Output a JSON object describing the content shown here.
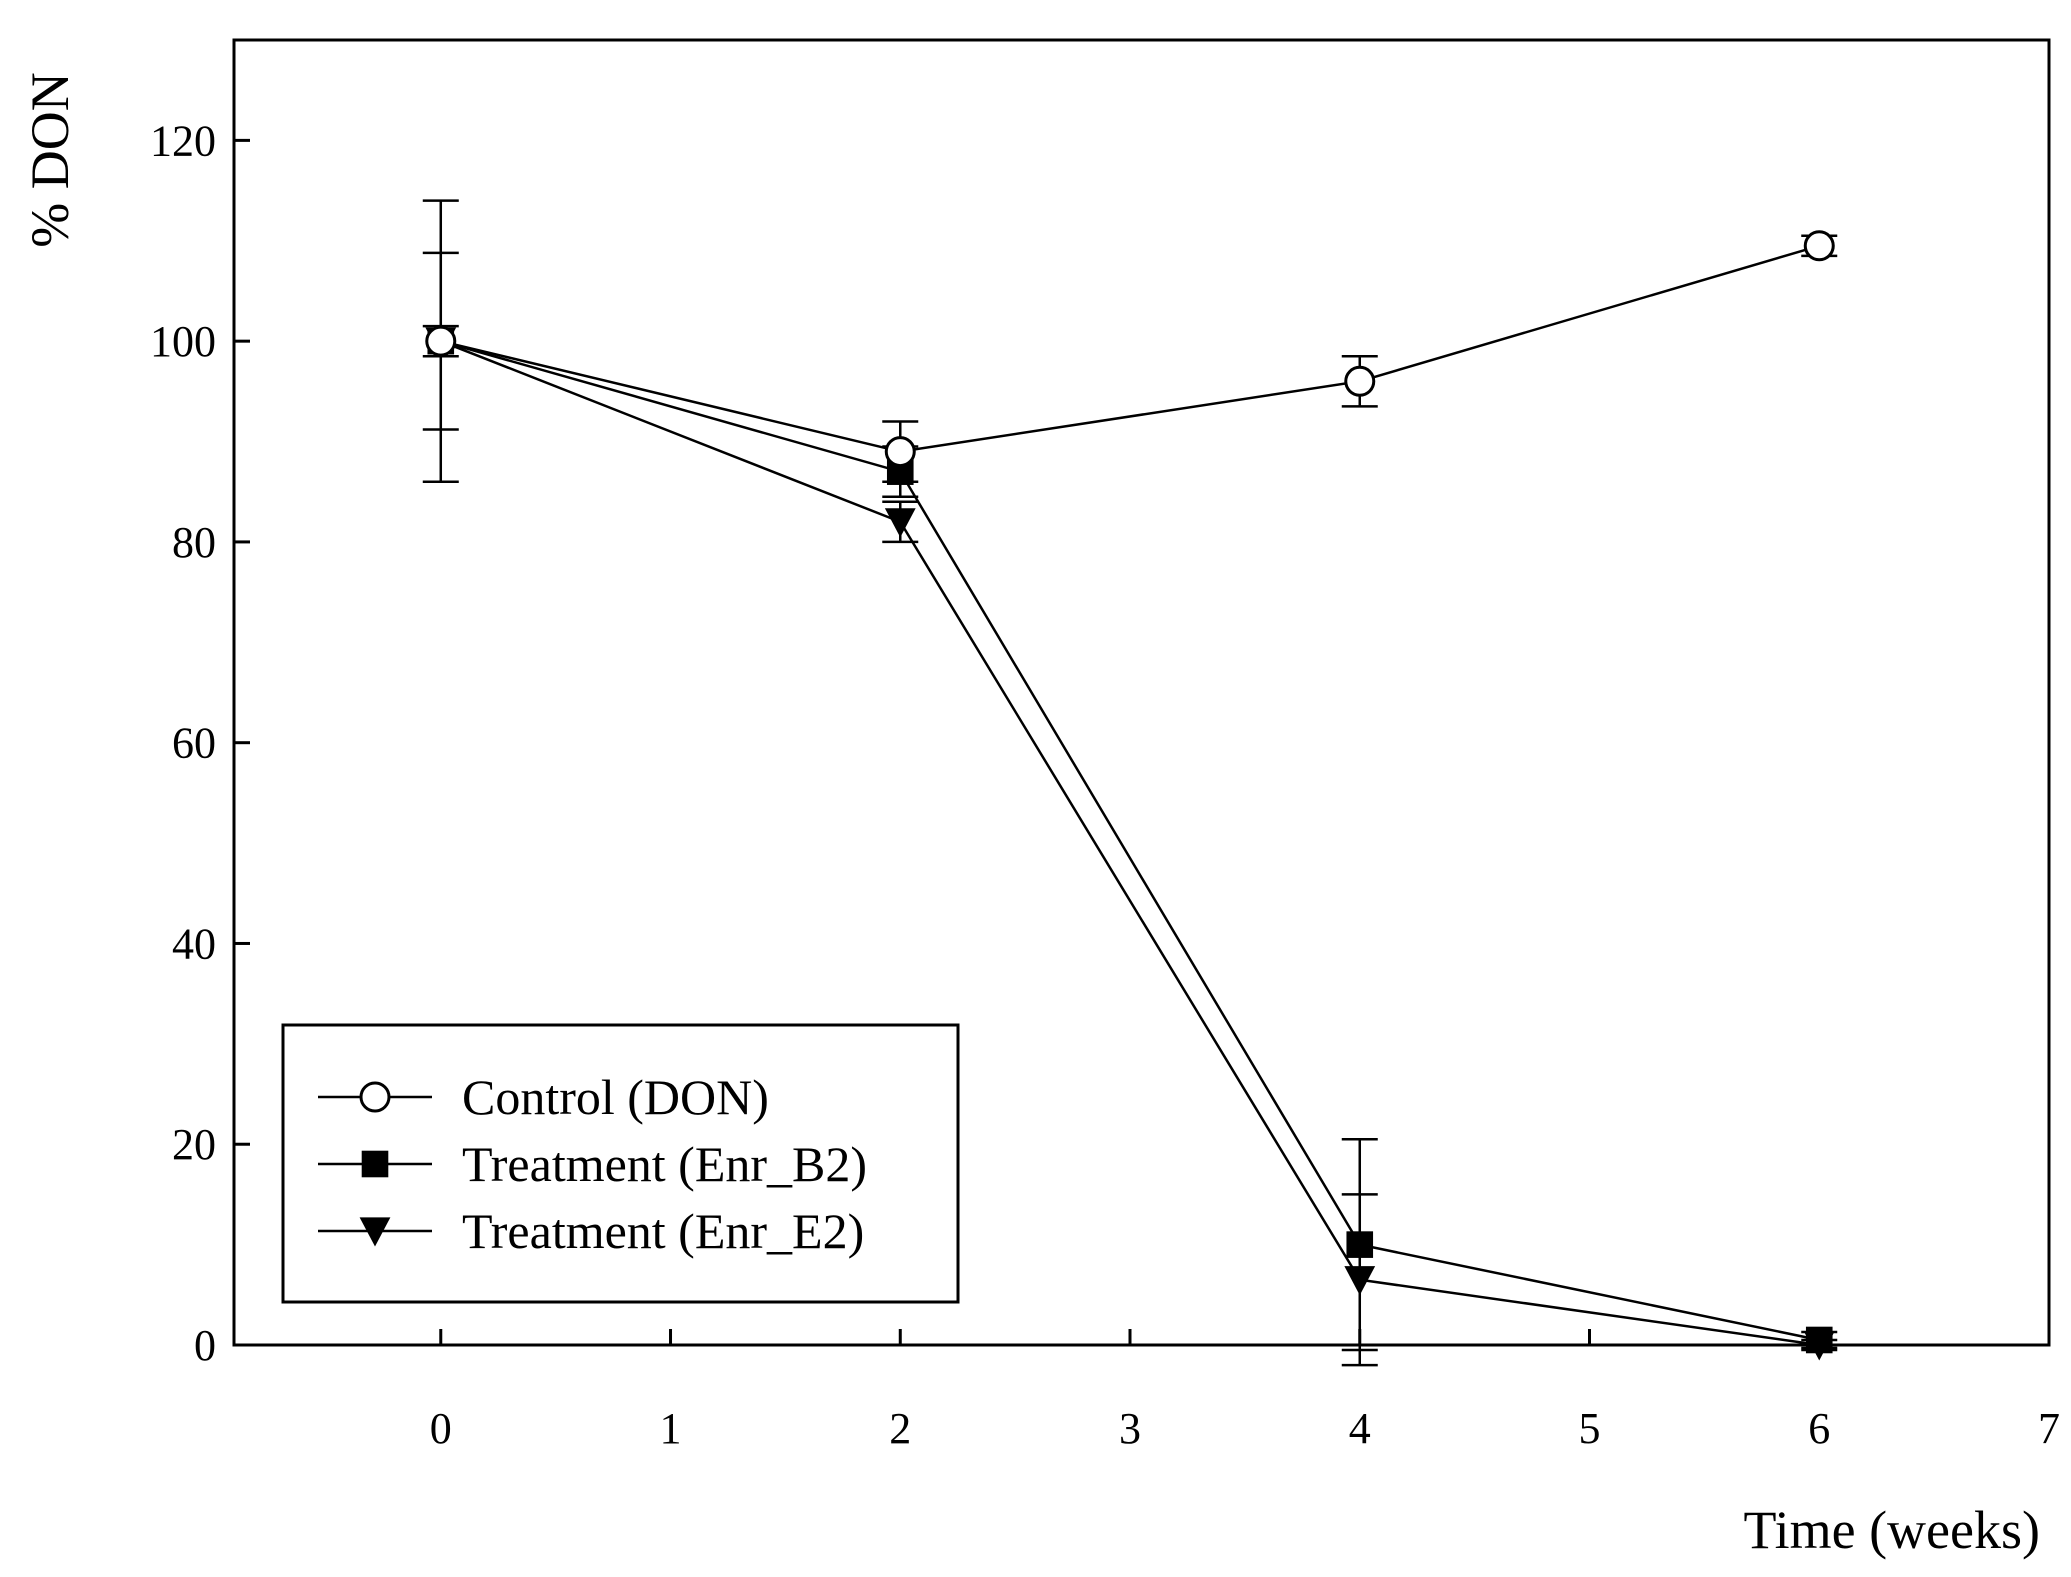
{
  "chart_data": {
    "type": "line",
    "title": "",
    "xlabel": "Time (weeks)",
    "ylabel": "% DON",
    "xlim": [
      -0.9,
      7
    ],
    "ylim": [
      0,
      130
    ],
    "x_ticks": [
      0,
      1,
      2,
      3,
      4,
      5,
      6,
      7
    ],
    "y_ticks": [
      0,
      20,
      40,
      60,
      80,
      100,
      120
    ],
    "grid": false,
    "legend_position": "bottom-left",
    "series": [
      {
        "name": "Control (DON)",
        "marker": "open-circle",
        "x": [
          0,
          2,
          4,
          6
        ],
        "values": [
          100,
          89,
          96,
          109.5
        ],
        "error": [
          14,
          3,
          2.5,
          1
        ]
      },
      {
        "name": "Treatment (Enr_B2)",
        "marker": "filled-square",
        "x": [
          0,
          2,
          4,
          6
        ],
        "values": [
          100,
          87,
          10,
          0.5
        ],
        "error": [
          1.5,
          2.5,
          10.5,
          0.8
        ]
      },
      {
        "name": "Treatment (Enr_E2)",
        "marker": "filled-triangle-down",
        "x": [
          0,
          2,
          4,
          6
        ],
        "values": [
          100,
          82,
          6.5,
          0
        ],
        "error": [
          8.8,
          2,
          8.5,
          0.5
        ]
      }
    ]
  }
}
